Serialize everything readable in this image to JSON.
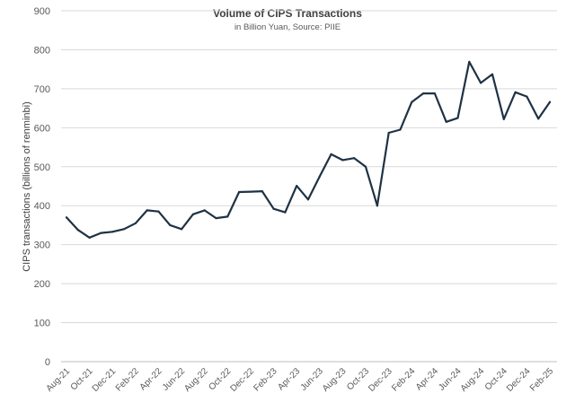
{
  "chart_data": {
    "type": "line",
    "title": "Volume of CIPS Transactions",
    "subtitle": "in Billion Yuan, Source: PIIE",
    "xlabel": "",
    "ylabel": "CIPS transactions (billions of renminbi)",
    "ylim": [
      0,
      900
    ],
    "yticks": [
      0,
      100,
      200,
      300,
      400,
      500,
      600,
      700,
      800,
      900
    ],
    "grid": true,
    "legend": "none",
    "line_color": "#1f3244",
    "x": [
      "Aug-21",
      "Sep-21",
      "Oct-21",
      "Nov-21",
      "Dec-21",
      "Jan-22",
      "Feb-22",
      "Mar-22",
      "Apr-22",
      "May-22",
      "Jun-22",
      "Jul-22",
      "Aug-22",
      "Sep-22",
      "Oct-22",
      "Nov-22",
      "Dec-22",
      "Jan-23",
      "Feb-23",
      "Mar-23",
      "Apr-23",
      "May-23",
      "Jun-23",
      "Jul-23",
      "Aug-23",
      "Sep-23",
      "Oct-23",
      "Nov-23",
      "Dec-23",
      "Jan-24",
      "Feb-24",
      "Mar-24",
      "Apr-24",
      "May-24",
      "Jun-24",
      "Jul-24",
      "Aug-24",
      "Sep-24",
      "Oct-24",
      "Nov-24",
      "Dec-24",
      "Jan-25",
      "Feb-25"
    ],
    "xtick_labels": [
      "Aug-21",
      "Oct-21",
      "Dec-21",
      "Feb-22",
      "Apr-22",
      "Jun-22",
      "Aug-22",
      "Oct-22",
      "Dec-22",
      "Feb-23",
      "Apr-23",
      "Jun-23",
      "Aug-23",
      "Oct-23",
      "Dec-23",
      "Feb-24",
      "Apr-24",
      "Jun-24",
      "Aug-24",
      "Oct-24",
      "Dec-24",
      "Feb-25"
    ],
    "series": [
      {
        "values": [
          370,
          338,
          318,
          330,
          333,
          340,
          355,
          388,
          385,
          350,
          340,
          378,
          388,
          368,
          372,
          435,
          436,
          437,
          392,
          383,
          451,
          416,
          475,
          532,
          517,
          522,
          500,
          400,
          587,
          595,
          666,
          688,
          688,
          615,
          625,
          769,
          715,
          737,
          622,
          691,
          680,
          623,
          666
        ]
      }
    ]
  }
}
